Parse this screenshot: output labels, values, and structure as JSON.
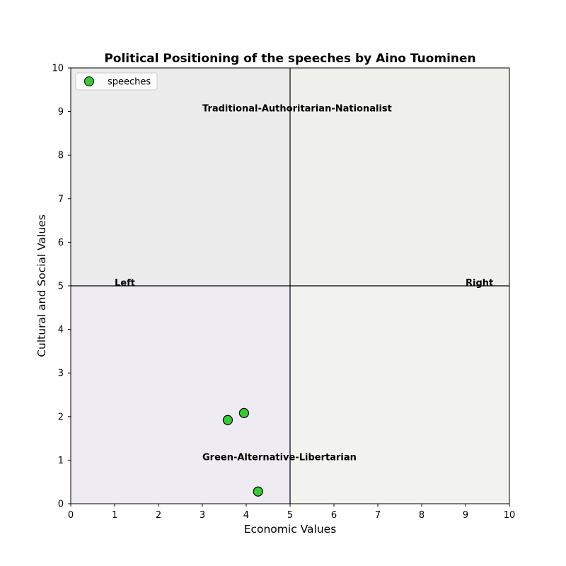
{
  "chart_data": {
    "type": "scatter",
    "title": "Political Positioning of the speeches by Aino Tuominen",
    "xlabel": "Economic Values",
    "ylabel": "Cultural and Social Values",
    "xlim": [
      0,
      10
    ],
    "ylim": [
      0,
      10
    ],
    "xticks": [
      "0",
      "1",
      "2",
      "3",
      "4",
      "5",
      "6",
      "7",
      "8",
      "9",
      "10"
    ],
    "yticks": [
      "0",
      "1",
      "2",
      "3",
      "4",
      "5",
      "6",
      "7",
      "8",
      "9",
      "10"
    ],
    "grid": false,
    "quadrants": [
      {
        "xrange": [
          0,
          5
        ],
        "yrange": [
          5,
          10
        ],
        "color": "#ececec"
      },
      {
        "xrange": [
          5,
          10
        ],
        "yrange": [
          5,
          10
        ],
        "color": "#eff0ec"
      },
      {
        "xrange": [
          0,
          5
        ],
        "yrange": [
          0,
          5
        ],
        "color": "#efebf2"
      },
      {
        "xrange": [
          5,
          10
        ],
        "yrange": [
          0,
          5
        ],
        "color": "#f2f2ee"
      }
    ],
    "divider_lines": {
      "x": 5,
      "y": 5,
      "color": "#000000"
    },
    "annotations": [
      {
        "text": "Traditional-Authoritarian-Nationalist",
        "x": 3,
        "y": 9
      },
      {
        "text": "Green-Alternative-Libertarian",
        "x": 3,
        "y": 1
      },
      {
        "text": "Left",
        "x": 1,
        "y": 5
      },
      {
        "text": "Right",
        "x": 9,
        "y": 5
      }
    ],
    "series": [
      {
        "name": "speeches",
        "color": "#33cc33",
        "edge_color": "#000000",
        "points": [
          {
            "x": 3.58,
            "y": 1.92
          },
          {
            "x": 3.95,
            "y": 2.08
          },
          {
            "x": 4.27,
            "y": 0.28
          }
        ]
      }
    ],
    "legend": {
      "placement": "top-left",
      "entries": [
        "speeches"
      ]
    }
  }
}
